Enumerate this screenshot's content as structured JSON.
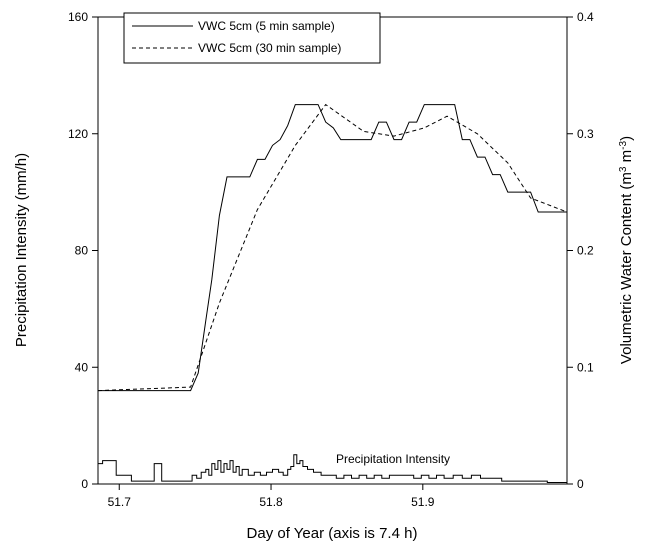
{
  "chart_data": {
    "type": "line",
    "xlabel": "Day of Year (axis is 7.4 h)",
    "ylabel_left": "Precipitation Intensity (mm/h)",
    "ylabel_right_main": "Volumetric Water Content (m",
    "ylabel_right_sup1": "3",
    "ylabel_right_mid": " m",
    "ylabel_right_sup2": "-3",
    "ylabel_right_end": ")",
    "xlim": [
      51.686,
      51.995
    ],
    "ylim_left": [
      0,
      160
    ],
    "ylim_right": [
      0,
      0.4
    ],
    "xticks": [
      51.7,
      51.8,
      51.9
    ],
    "xtick_labels": [
      "51.7",
      "51.8",
      "51.9"
    ],
    "yticks_left": [
      0,
      40,
      80,
      120,
      160
    ],
    "ytick_labels_left": [
      "0",
      "40",
      "80",
      "120",
      "160"
    ],
    "yticks_right": [
      0,
      0.1,
      0.2,
      0.3,
      0.4
    ],
    "ytick_labels_right": [
      "0",
      "0.1",
      "0.2",
      "0.3",
      "0.4"
    ],
    "legend_position": "top-left",
    "annotation": "Precipitation Intensity",
    "series": [
      {
        "name": "VWC 5cm (5 min sample)",
        "axis": "right",
        "style": "solid",
        "x": [
          51.686,
          51.747,
          51.752,
          51.757,
          51.761,
          51.766,
          51.771,
          51.776,
          51.781,
          51.786,
          51.791,
          51.796,
          51.801,
          51.806,
          51.811,
          51.816,
          51.821,
          51.826,
          51.831,
          51.836,
          51.841,
          51.846,
          51.851,
          51.856,
          51.861,
          51.866,
          51.871,
          51.876,
          51.881,
          51.886,
          51.891,
          51.896,
          51.901,
          51.906,
          51.911,
          51.916,
          51.921,
          51.926,
          51.931,
          51.936,
          51.941,
          51.946,
          51.951,
          51.956,
          51.961,
          51.966,
          51.971,
          51.976,
          51.981,
          51.986,
          51.995
        ],
        "y": [
          0.08,
          0.08,
          0.095,
          0.14,
          0.175,
          0.23,
          0.263,
          0.263,
          0.263,
          0.263,
          0.278,
          0.278,
          0.29,
          0.295,
          0.307,
          0.325,
          0.325,
          0.325,
          0.325,
          0.31,
          0.305,
          0.295,
          0.295,
          0.295,
          0.295,
          0.295,
          0.31,
          0.31,
          0.295,
          0.295,
          0.31,
          0.31,
          0.325,
          0.325,
          0.325,
          0.325,
          0.325,
          0.295,
          0.295,
          0.28,
          0.28,
          0.265,
          0.265,
          0.25,
          0.25,
          0.25,
          0.25,
          0.233,
          0.233,
          0.233,
          0.233
        ]
      },
      {
        "name": "VWC 5cm (30 min sample)",
        "axis": "right",
        "style": "dashed",
        "x": [
          51.686,
          51.747,
          51.766,
          51.791,
          51.816,
          51.836,
          51.861,
          51.881,
          51.901,
          51.916,
          51.936,
          51.956,
          51.971,
          51.995
        ],
        "y": [
          0.08,
          0.083,
          0.155,
          0.235,
          0.29,
          0.325,
          0.302,
          0.298,
          0.305,
          0.315,
          0.3,
          0.275,
          0.245,
          0.233
        ]
      },
      {
        "name": "Precipitation Intensity",
        "axis": "left",
        "style": "step",
        "x": [
          51.686,
          51.689,
          51.698,
          51.708,
          51.713,
          51.723,
          51.728,
          51.738,
          51.743,
          51.748,
          51.751,
          51.754,
          51.757,
          51.759,
          51.761,
          51.763,
          51.765,
          51.767,
          51.769,
          51.771,
          51.773,
          51.775,
          51.777,
          51.779,
          51.781,
          51.785,
          51.789,
          51.793,
          51.797,
          51.801,
          51.805,
          51.808,
          51.811,
          51.813,
          51.815,
          51.817,
          51.819,
          51.821,
          51.824,
          51.828,
          51.833,
          51.838,
          51.843,
          51.848,
          51.853,
          51.858,
          51.863,
          51.868,
          51.873,
          51.878,
          51.884,
          51.889,
          51.894,
          51.899,
          51.904,
          51.909,
          51.914,
          51.92,
          51.926,
          51.932,
          51.938,
          51.944,
          51.952,
          51.962,
          51.972,
          51.982,
          51.992
        ],
        "y": [
          7,
          8,
          3,
          1,
          1,
          7,
          1,
          1,
          1,
          3,
          2,
          4,
          5,
          3,
          7,
          5,
          8,
          4,
          7,
          5,
          8,
          4,
          6,
          3,
          5,
          3,
          4,
          3,
          4,
          5,
          4,
          3,
          5,
          6,
          10,
          7,
          8,
          6,
          5,
          4,
          3,
          3,
          2,
          3,
          2,
          3,
          2,
          3,
          2,
          3,
          3,
          3,
          2,
          3,
          2,
          3,
          2,
          3,
          2,
          3,
          2,
          2,
          1,
          1,
          1,
          0.5,
          0.5
        ]
      }
    ]
  }
}
